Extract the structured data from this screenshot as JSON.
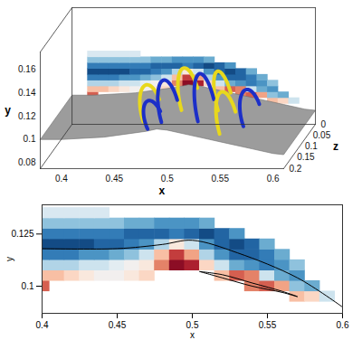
{
  "chart_data": [
    {
      "type": "isosurface_3d",
      "x_label": "x",
      "y_label": "y",
      "z_label": "z",
      "xlim": [
        0.38,
        0.61
      ],
      "xticks": [
        0.4,
        0.45,
        0.5,
        0.55,
        0.6
      ],
      "ylim": [
        0.075,
        0.175
      ],
      "yticks": [
        0.08,
        0.1,
        0.12,
        0.14,
        0.16
      ],
      "zlim": [
        0,
        0.2
      ],
      "zticks": [
        0,
        0.05,
        0.1,
        0.15,
        0.2
      ],
      "wall": {
        "x": [
          0.38,
          0.4,
          0.44,
          0.48,
          0.49,
          0.5,
          0.52,
          0.54,
          0.56,
          0.58,
          0.6,
          0.61
        ],
        "y": [
          0.1,
          0.1,
          0.102,
          0.107,
          0.109,
          0.108,
          0.104,
          0.1,
          0.096,
          0.092,
          0.088,
          0.087
        ]
      },
      "structures": [
        {
          "x": 0.48,
          "z": 0.15,
          "width": 0.04,
          "height": 0.015,
          "color": "#1c2fc8"
        },
        {
          "x": 0.49,
          "z": 0.12,
          "width": 0.05,
          "height": 0.025,
          "color": "#1c2fc8"
        },
        {
          "x": 0.545,
          "z": 0.12,
          "width": 0.05,
          "height": 0.025,
          "color": "#e8d81c"
        },
        {
          "x": 0.47,
          "z": 0.1,
          "width": 0.05,
          "height": 0.02,
          "color": "#e8d81c"
        },
        {
          "x": 0.52,
          "z": 0.09,
          "width": 0.05,
          "height": 0.03,
          "color": "#1c2fc8"
        },
        {
          "x": 0.56,
          "z": 0.07,
          "width": 0.05,
          "height": 0.02,
          "color": "#1c2fc8"
        },
        {
          "x": 0.5,
          "z": 0.06,
          "width": 0.05,
          "height": 0.025,
          "color": "#e8d81c"
        },
        {
          "x": 0.53,
          "z": 0.04,
          "width": 0.04,
          "height": 0.025,
          "color": "#e8d81c"
        }
      ]
    },
    {
      "type": "contour",
      "x_label": "x",
      "y_label": "y",
      "xlim": [
        0.4,
        0.6
      ],
      "xticks": [
        0.4,
        0.45,
        0.5,
        0.55,
        0.6
      ],
      "ylim": [
        0.087,
        0.139
      ],
      "yticks": [
        0.1,
        0.125
      ],
      "value_range": [
        -1,
        1
      ],
      "field": {
        "x": [
          0.4,
          0.41,
          0.42,
          0.43,
          0.44,
          0.45,
          0.46,
          0.47,
          0.48,
          0.49,
          0.5,
          0.51,
          0.52,
          0.53,
          0.54,
          0.55,
          0.56,
          0.57,
          0.58,
          0.59,
          0.6
        ],
        "y": [
          0.095,
          0.1,
          0.105,
          0.11,
          0.115,
          0.12,
          0.125,
          0.13,
          0.135
        ],
        "values": [
          [
            null,
            null,
            null,
            null,
            null,
            null,
            null,
            null,
            null,
            null,
            null,
            null,
            null,
            null,
            null,
            null,
            null,
            0.3,
            0.2,
            -0.2,
            null
          ],
          [
            0.6,
            null,
            null,
            null,
            null,
            null,
            null,
            null,
            null,
            null,
            null,
            null,
            null,
            null,
            0.5,
            0.6,
            0.4,
            -0.4,
            -0.5,
            null,
            null
          ],
          [
            0.3,
            0.3,
            0.2,
            0.1,
            0,
            0,
            0.1,
            0.2,
            null,
            null,
            null,
            null,
            0.3,
            0.6,
            0.5,
            -0.2,
            -0.5,
            -0.6,
            null,
            null,
            null
          ],
          [
            -0.3,
            -0.3,
            -0.3,
            -0.2,
            -0.2,
            -0.1,
            0,
            0.1,
            0.5,
            0.9,
            0.8,
            0.2,
            -0.2,
            -0.5,
            -0.6,
            -0.7,
            -0.6,
            -0.4,
            null,
            null,
            null
          ],
          [
            -0.7,
            -0.7,
            -0.7,
            -0.6,
            -0.6,
            -0.5,
            -0.4,
            -0.2,
            0.3,
            0.7,
            0.4,
            -0.3,
            -0.6,
            -0.8,
            -0.8,
            -0.7,
            -0.5,
            null,
            null,
            null,
            null
          ],
          [
            -0.9,
            -0.9,
            -0.9,
            -0.9,
            -0.8,
            -0.8,
            -0.7,
            -0.6,
            -0.3,
            0.1,
            -0.2,
            -0.6,
            -0.8,
            -0.9,
            -0.8,
            -0.5,
            null,
            null,
            null,
            null,
            null
          ],
          [
            -0.7,
            -0.7,
            -0.7,
            -0.7,
            -0.7,
            -0.7,
            -0.8,
            -0.8,
            -0.8,
            -0.7,
            -0.8,
            -0.9,
            -0.8,
            -0.6,
            null,
            null,
            null,
            null,
            null,
            null,
            null
          ],
          [
            -0.4,
            -0.4,
            -0.4,
            -0.4,
            -0.4,
            -0.4,
            -0.5,
            -0.5,
            -0.6,
            -0.6,
            -0.6,
            -0.5,
            null,
            null,
            null,
            null,
            null,
            null,
            null,
            null,
            null
          ],
          [
            -0.15,
            -0.15,
            -0.15,
            -0.15,
            -0.15,
            null,
            null,
            null,
            null,
            null,
            null,
            null,
            null,
            null,
            null,
            null,
            null,
            null,
            null,
            null,
            null
          ]
        ]
      },
      "contours": [
        {
          "x": [
            0.4,
            0.45,
            0.48,
            0.5,
            0.53,
            0.57,
            0.6
          ],
          "y": [
            0.118,
            0.118,
            0.12,
            0.122,
            0.116,
            0.104,
            0.09
          ]
        },
        {
          "x": [
            0.505,
            0.52,
            0.54,
            0.56,
            0.57,
            0.56,
            0.54,
            0.52,
            0.505
          ],
          "y": [
            0.107,
            0.1055,
            0.1015,
            0.0975,
            0.095,
            0.097,
            0.1,
            0.104,
            0.107
          ]
        }
      ]
    }
  ]
}
